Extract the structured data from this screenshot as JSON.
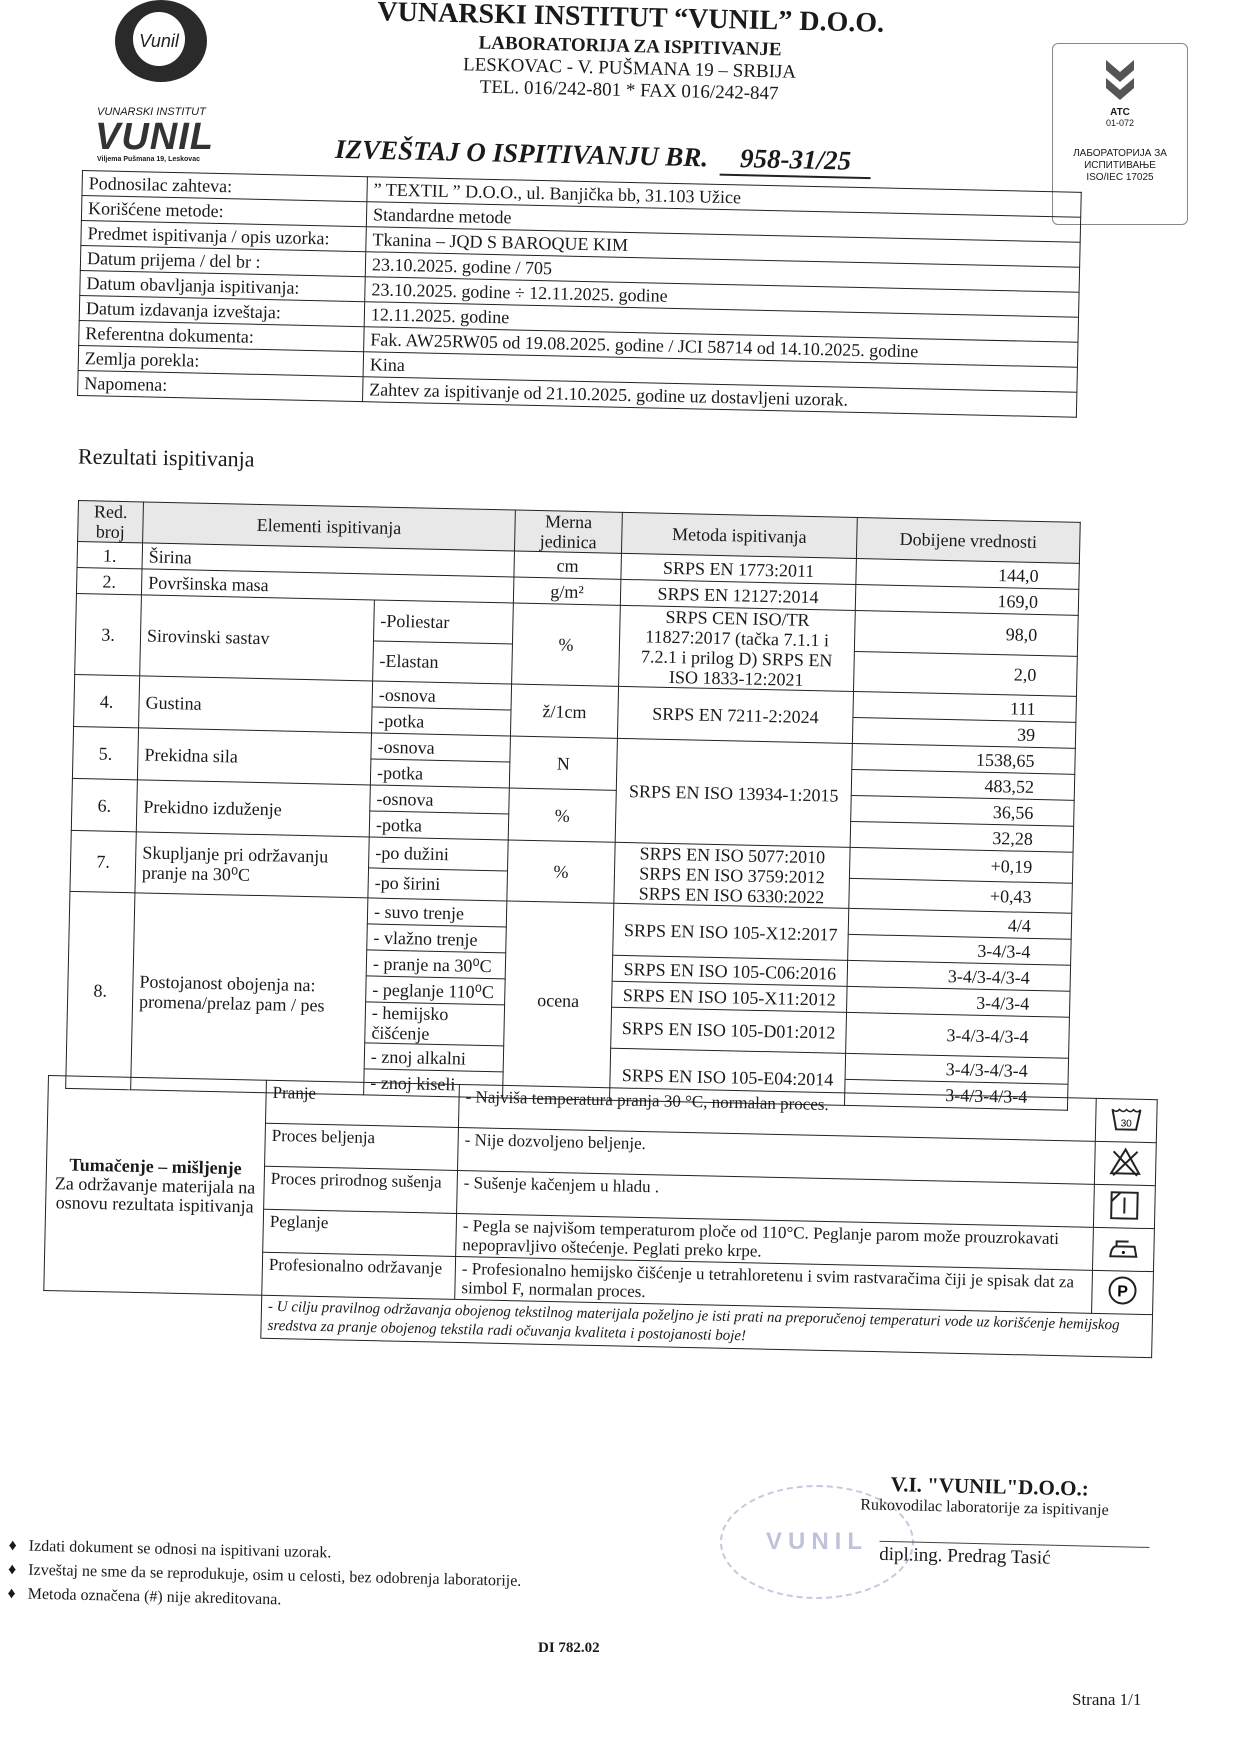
{
  "logo": {
    "letter": "Vunil",
    "institute": "VUNARSKI INSTITUT",
    "brand": "VUNIL",
    "address": "Viljema Pušmana 19, Leskovac"
  },
  "header": {
    "title": "VUNARSKI INSTITUT “VUNIL” D.O.O.",
    "subtitle": "LABORATORIJA ZA ISPITIVANJE",
    "address": "LESKOVAC - V. PUŠMANA 19 – SRBIJA",
    "phone": "TEL. 016/242-801 * FAX 016/242-847",
    "report_label": "IZVEŠTAJ O ISPITIVANJU BR.",
    "report_number": "958-31/25"
  },
  "accreditation": {
    "code": "ATC",
    "number": "01-072",
    "lab": "ЛАБОРАТОРИЈА ЗА ИСПИТИВАЊЕ",
    "standard": "ISO/IEC 17025"
  },
  "info": [
    {
      "label": "Podnosilac zahteva:",
      "value": "” TEXTIL ” D.O.O., ul. Banjička bb, 31.103 Užice"
    },
    {
      "label": "Korišćene metode:",
      "value": "Standardne metode"
    },
    {
      "label": "Predmet ispitivanja / opis uzorka:",
      "value": "Tkanina –  JQD S BAROQUE KIM"
    },
    {
      "label": "Datum prijema / del br :",
      "value": "23.10.2025.  godine   /     705"
    },
    {
      "label": "Datum obavljanja ispitivanja:",
      "value": "23.10.2025.  godine ÷ 12.11.2025.  godine"
    },
    {
      "label": "Datum izdavanja izveštaja:",
      "value": "12.11.2025.  godine"
    },
    {
      "label": "Referentna dokumenta:",
      "value": "Fak. AW25RW05 od 19.08.2025. godine  /  JCI 58714 od 14.10.2025. godine"
    },
    {
      "label": "Zemlja porekla:",
      "value": "Kina"
    },
    {
      "label": "Napomena:",
      "value": "Zahtev za ispitivanje od 21.10.2025. godine uz dostavljeni uzorak."
    }
  ],
  "results_title": "Rezultati ispitivanja",
  "results": {
    "headers": {
      "no": "Red. broj",
      "elements": "Elementi ispitivanja",
      "unit": "Merna jedinica",
      "method": "Metoda ispitivanja",
      "value": "Dobijene vrednosti"
    },
    "groups": [
      {
        "no": "1.",
        "name": "Širina",
        "unit": "cm",
        "method": "SRPS EN 1773:2011",
        "subs": [
          {
            "label": "",
            "value": "144,0"
          }
        ]
      },
      {
        "no": "2.",
        "name": "Površinska masa",
        "unit": "g/m²",
        "method": "SRPS EN 12127:2014",
        "subs": [
          {
            "label": "",
            "value": "169,0"
          }
        ]
      },
      {
        "no": "3.",
        "name": "Sirovinski sastav",
        "unit": "%",
        "method": "SRPS CEN ISO/TR 11827:2017 (tačka 7.1.1 i 7.2.1 i prilog D) SRPS EN ISO 1833-12:2021",
        "subs": [
          {
            "label": "-Poliestar",
            "value": "98,0"
          },
          {
            "label": "-Elastan",
            "value": "2,0"
          }
        ]
      },
      {
        "no": "4.",
        "name": "Gustina",
        "unit": "ž/1cm",
        "method": "SRPS EN 7211-2:2024",
        "subs": [
          {
            "label": "-osnova",
            "value": "111"
          },
          {
            "label": "-potka",
            "value": "39"
          }
        ]
      },
      {
        "no": "5.",
        "name": "Prekidna sila",
        "unit": "N",
        "method": "SRPS EN ISO 13934-1:2015",
        "subs": [
          {
            "label": "-osnova",
            "value": "1538,65"
          },
          {
            "label": "-potka",
            "value": "483,52"
          }
        ]
      },
      {
        "no": "6.",
        "name": "Prekidno izduženje",
        "unit": "%",
        "method": "",
        "subs": [
          {
            "label": "-osnova",
            "value": "36,56"
          },
          {
            "label": "-potka",
            "value": "32,28"
          }
        ]
      },
      {
        "no": "7.",
        "name": "Skupljanje pri održavanju pranje na 30⁰C",
        "unit": "%",
        "method": "SRPS EN ISO 5077:2010 SRPS EN ISO 3759:2012 SRPS EN ISO 6330:2022",
        "subs": [
          {
            "label": "-po dužini",
            "value": "+0,19"
          },
          {
            "label": "-po širini",
            "value": "+0,43"
          }
        ]
      },
      {
        "no": "8.",
        "name": "Postojanost obojenja na: promena/prelaz pam / pes",
        "unit": "ocena",
        "method": "",
        "subs": [
          {
            "label": "- suvo trenje",
            "value": "4/4"
          },
          {
            "label": "- vlažno trenje",
            "value": "3-4/3-4"
          },
          {
            "label": "- pranje na 30⁰C",
            "value": "3-4/3-4/3-4"
          },
          {
            "label": "- peglanje 110⁰C",
            "value": "3-4/3-4"
          },
          {
            "label": "- hemijsko čišćenje",
            "value": "3-4/3-4/3-4"
          },
          {
            "label": "- znoj alkalni",
            "value": "3-4/3-4/3-4"
          },
          {
            "label": "- znoj  kiseli",
            "value": "3-4/3-4/3-4"
          }
        ]
      }
    ],
    "methods8": [
      "SRPS EN ISO 105-X12:2017",
      "SRPS EN ISO 105-C06:2016",
      "SRPS EN ISO 105-X11:2012",
      "SRPS EN ISO 105-D01:2012",
      "SRPS EN ISO 105-E04:2014"
    ]
  },
  "interpretation": {
    "title": "Tumačenje – mišljenje",
    "subtitle": "Za održavanje materijala na osnovu rezultata ispitivanja",
    "rows": [
      {
        "label": "Pranje",
        "text": "-  Najviša temperatura pranja 30 °C, normalan proces.",
        "icon": "wash-30-icon"
      },
      {
        "label": "Proces beljenja",
        "text": "- Nije dozvoljeno beljenje.",
        "icon": "no-bleach-icon"
      },
      {
        "label": "Proces prirodnog sušenja",
        "text": "-  Sušenje kačenjem u hladu .",
        "icon": "line-dry-shade-icon"
      },
      {
        "label": "Peglanje",
        "text": "-  Pegla se najvišom temperaturom ploče od 110°C. Peglanje parom može prouzrokavati nepopravljivo oštećenje. Peglati preko krpe.",
        "icon": "iron-low-icon"
      },
      {
        "label": "Profesionalno održavanje",
        "text": "- Profesionalno hemijsko čišćenje u tetrahloretenu i svim rastvaračima čiji je spisak dat za simbol F, normalan proces.",
        "icon": "dry-clean-p-icon"
      }
    ],
    "note": "- U cilju pravilnog održavanja obojenog tekstilnog materijala poželjno je isti prati na preporučenoj temperaturi vode uz korišćenje hemijskog sredstva za pranje obojenog tekstila radi očuvanja kvaliteta i postojanosti boje!"
  },
  "signature": {
    "company": "V.I. \"VUNIL\"D.O.O.:",
    "role": "Rukovodilac laboratorije za ispitivanje",
    "name": "dipl.ing. Predrag Tasić",
    "stamp": "VUNIL"
  },
  "footer": {
    "notes": [
      "Izdati dokument se odnosi na ispitivani uzorak.",
      "Izveštaj ne sme da se reprodukuje, osim u celosti, bez odobrenja laboratorije.",
      "Metoda označena (#) nije akreditovana."
    ],
    "doc_code": "DI 782.02",
    "page": "Strana 1/1"
  }
}
